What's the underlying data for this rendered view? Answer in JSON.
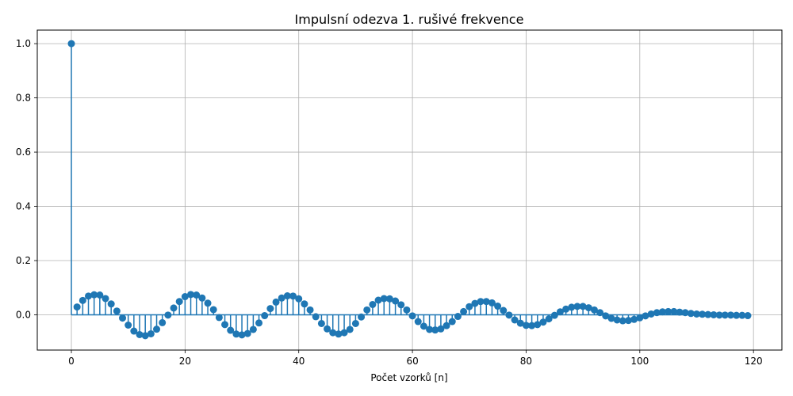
{
  "chart_data": {
    "type": "stem",
    "title": "Impulsní odezva 1. rušivé frekvence",
    "xlabel": "Počet vzorků [n]",
    "ylabel": "",
    "xlim": [
      -6,
      125
    ],
    "ylim": [
      -0.13,
      1.05
    ],
    "xticks": [
      0,
      20,
      40,
      60,
      80,
      100,
      120
    ],
    "yticks": [
      0.0,
      0.2,
      0.4,
      0.6,
      0.8,
      1.0
    ],
    "xtick_labels": [
      "0",
      "20",
      "40",
      "60",
      "80",
      "100",
      "120"
    ],
    "ytick_labels": [
      "0.0",
      "0.2",
      "0.4",
      "0.6",
      "0.8",
      "1.0"
    ],
    "grid": true,
    "color": "#1f77b4",
    "x": [
      0,
      1,
      2,
      3,
      4,
      5,
      6,
      7,
      8,
      9,
      10,
      11,
      12,
      13,
      14,
      15,
      16,
      17,
      18,
      19,
      20,
      21,
      22,
      23,
      24,
      25,
      26,
      27,
      28,
      29,
      30,
      31,
      32,
      33,
      34,
      35,
      36,
      37,
      38,
      39,
      40,
      41,
      42,
      43,
      44,
      45,
      46,
      47,
      48,
      49,
      50,
      51,
      52,
      53,
      54,
      55,
      56,
      57,
      58,
      59,
      60,
      61,
      62,
      63,
      64,
      65,
      66,
      67,
      68,
      69,
      70,
      71,
      72,
      73,
      74,
      75,
      76,
      77,
      78,
      79,
      80,
      81,
      82,
      83,
      84,
      85,
      86,
      87,
      88,
      89,
      90,
      91,
      92,
      93,
      94,
      95,
      96,
      97,
      98,
      99,
      100,
      101,
      102,
      103,
      104,
      105,
      106,
      107,
      108,
      109,
      110,
      111,
      112,
      113,
      114,
      115,
      116,
      117,
      118,
      119
    ],
    "values": [
      1.0,
      0.029,
      0.053,
      0.069,
      0.074,
      0.073,
      0.06,
      0.04,
      0.014,
      -0.012,
      -0.038,
      -0.06,
      -0.073,
      -0.077,
      -0.07,
      -0.053,
      -0.029,
      -0.001,
      0.025,
      0.049,
      0.067,
      0.075,
      0.073,
      0.062,
      0.043,
      0.019,
      -0.01,
      -0.036,
      -0.057,
      -0.071,
      -0.074,
      -0.069,
      -0.054,
      -0.03,
      -0.003,
      0.023,
      0.047,
      0.062,
      0.07,
      0.069,
      0.059,
      0.04,
      0.018,
      -0.007,
      -0.032,
      -0.052,
      -0.066,
      -0.071,
      -0.066,
      -0.054,
      -0.032,
      -0.008,
      0.018,
      0.038,
      0.054,
      0.06,
      0.059,
      0.051,
      0.037,
      0.018,
      -0.004,
      -0.025,
      -0.042,
      -0.054,
      -0.056,
      -0.052,
      -0.04,
      -0.025,
      -0.006,
      0.012,
      0.03,
      0.042,
      0.049,
      0.049,
      0.044,
      0.032,
      0.016,
      -0.001,
      -0.019,
      -0.031,
      -0.039,
      -0.04,
      -0.036,
      -0.027,
      -0.015,
      -0.002,
      0.011,
      0.021,
      0.028,
      0.031,
      0.031,
      0.026,
      0.018,
      0.008,
      -0.004,
      -0.013,
      -0.019,
      -0.022,
      -0.021,
      -0.017,
      -0.011,
      -0.004,
      0.003,
      0.008,
      0.011,
      0.012,
      0.012,
      0.01,
      0.008,
      0.005,
      0.003,
      0.002,
      0.001,
      0.0,
      -0.001,
      -0.001,
      -0.001,
      -0.002,
      -0.002,
      -0.003
    ]
  }
}
